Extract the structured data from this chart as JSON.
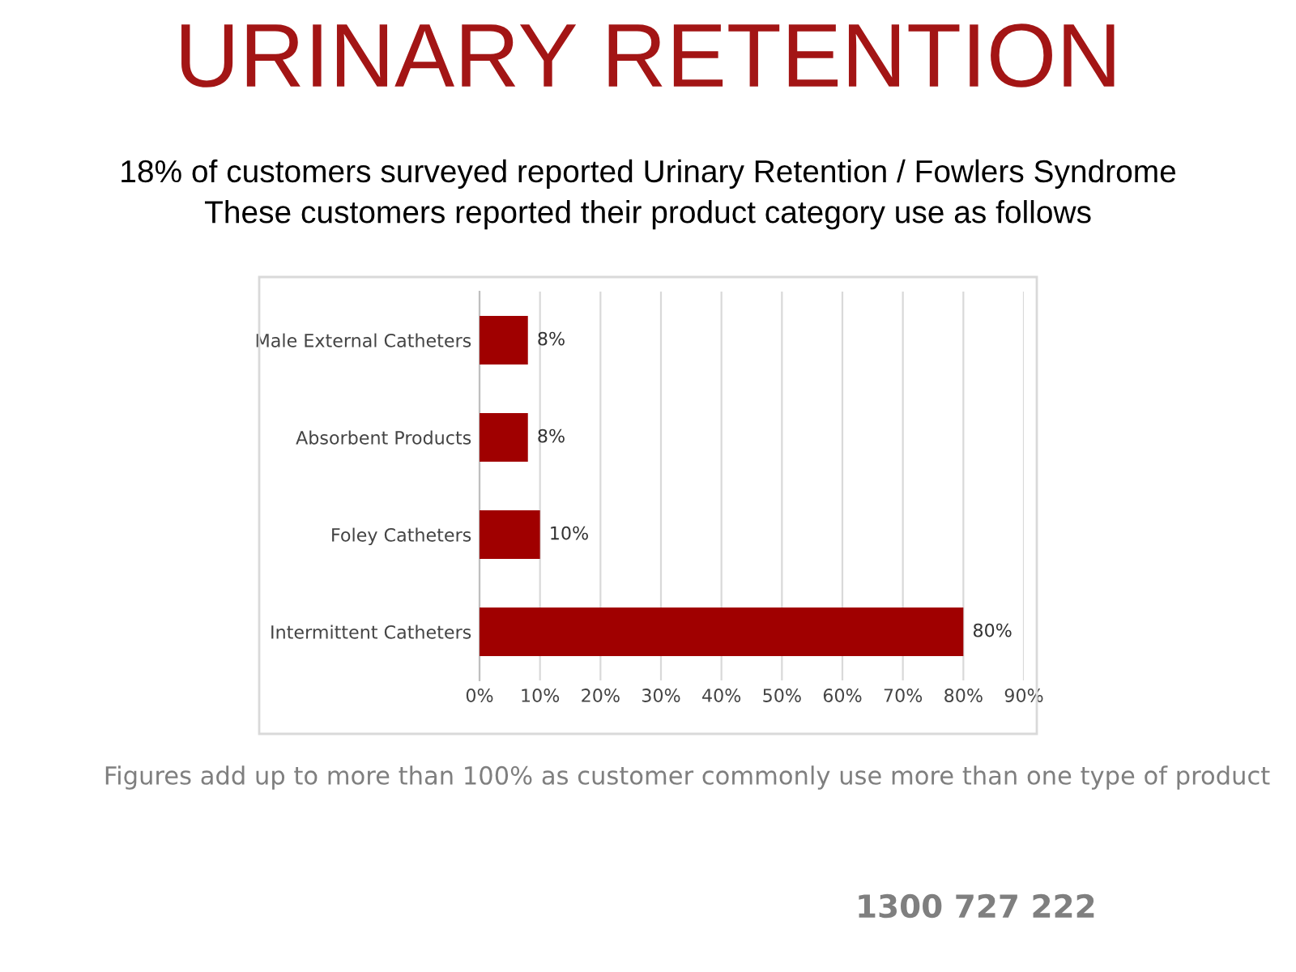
{
  "chart_data": {
    "type": "bar",
    "orientation": "horizontal",
    "title": "URINARY RETENTION",
    "subtitle": "18% of customers surveyed reported Urinary Retention / Fowlers Syndrome\nThese customers reported their product category use as follows",
    "categories": [
      "Male External Catheters",
      "Absorbent Products",
      "Foley Catheters",
      "Intermittent Catheters"
    ],
    "values": [
      8,
      8,
      10,
      80
    ],
    "color": "#a00000",
    "value_labels": [
      "8%",
      "8%",
      "10%",
      "80%"
    ],
    "xlim": [
      0,
      90
    ],
    "xticks": [
      {
        "value": 0,
        "label": "0%"
      },
      {
        "value": 10,
        "label": "10%"
      },
      {
        "value": 20,
        "label": "20%"
      },
      {
        "value": 30,
        "label": "30%"
      },
      {
        "value": 40,
        "label": "40%"
      },
      {
        "value": 50,
        "label": "50%"
      },
      {
        "value": 60,
        "label": "60%"
      },
      {
        "value": 70,
        "label": "70%"
      },
      {
        "value": 80,
        "label": "80%"
      },
      {
        "value": 90,
        "label": "90%"
      }
    ],
    "grid": "x",
    "legend": false,
    "annotations": [
      "Figures add up to more than 100% as customer commonly use more than one type of product",
      "1300 727 222"
    ]
  }
}
